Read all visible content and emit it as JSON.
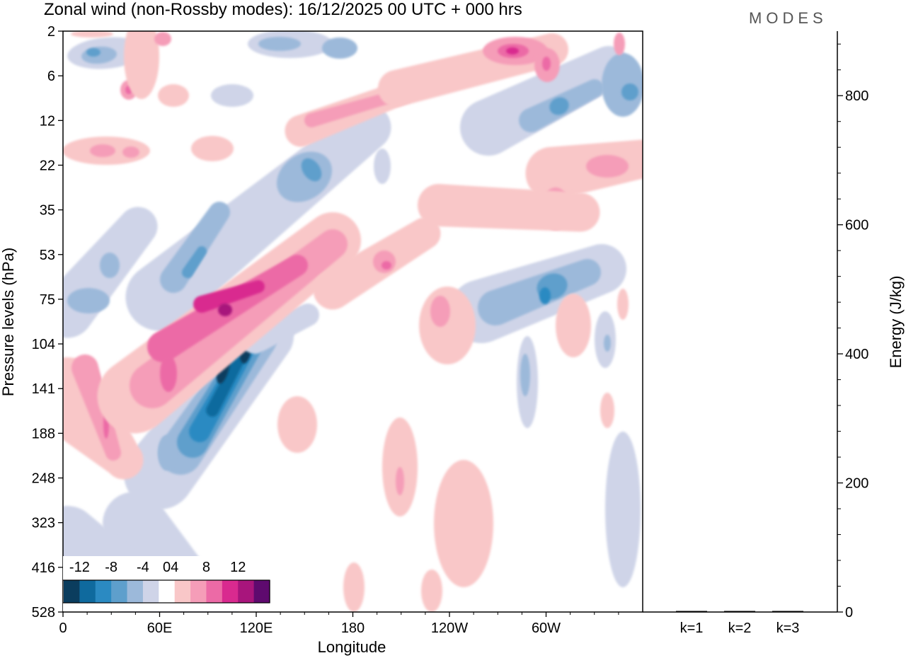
{
  "chart_data": {
    "type": "contour",
    "title": "Zonal wind (non-Rossby modes):  16/12/2025  00 UTC  + 000 hrs",
    "brand": "MODES",
    "xlabel": "Longitude",
    "ylabel": "Pressure levels (hPa)",
    "x_ticks": [
      "0",
      "60E",
      "120E",
      "180",
      "120W",
      "60W"
    ],
    "x_tick_values": [
      0,
      60,
      120,
      180,
      240,
      300
    ],
    "x_range": [
      0,
      360
    ],
    "y_ticks": [
      "2",
      "6",
      "12",
      "22",
      "35",
      "53",
      "75",
      "104",
      "141",
      "188",
      "248",
      "323",
      "416",
      "528"
    ],
    "colorbar": {
      "tick_labels": [
        "-12",
        "-8",
        "-4",
        "0",
        "4",
        "8",
        "12"
      ],
      "levels": [
        -14,
        -12,
        -10,
        -8,
        -6,
        -4,
        -2,
        2,
        4,
        6,
        8,
        10,
        12,
        14
      ],
      "colors": [
        "#0b3d5e",
        "#0f6a9e",
        "#2b8ac2",
        "#5e9fcc",
        "#9cb9da",
        "#cfd4e8",
        "#ffffff",
        "#f9c7c8",
        "#f59db8",
        "#ec6aa6",
        "#d92a8f",
        "#a8157c",
        "#5e0a6e"
      ]
    },
    "field_features": [
      {
        "lon": 100,
        "level": "141",
        "value": -14
      },
      {
        "lon": 105,
        "level": "104",
        "value": -12
      },
      {
        "lon": 90,
        "level": "75",
        "value": 10
      },
      {
        "lon": 60,
        "level": "141",
        "value": 8
      },
      {
        "lon": 25,
        "level": "141",
        "value": 6
      },
      {
        "lon": 20,
        "level": "2",
        "value": -8
      },
      {
        "lon": 80,
        "level": "53",
        "value": -6
      },
      {
        "lon": 150,
        "level": "22",
        "value": -6
      },
      {
        "lon": 200,
        "level": "53",
        "value": 7
      },
      {
        "lon": 275,
        "level": "2",
        "value": 10
      },
      {
        "lon": 300,
        "level": "6",
        "value": 9
      },
      {
        "lon": 300,
        "level": "75",
        "value": -7
      },
      {
        "lon": 240,
        "level": "104",
        "value": 5
      },
      {
        "lon": 335,
        "level": "22",
        "value": 6
      },
      {
        "lon": 345,
        "level": "6",
        "value": -6
      },
      {
        "lon": 280,
        "level": "12",
        "value": -6
      },
      {
        "lon": 210,
        "level": "248",
        "value": 4
      },
      {
        "lon": 240,
        "level": "323",
        "value": 4
      }
    ],
    "energy_panel": {
      "ylabel": "Energy (J/kg)",
      "y_ticks": [
        0,
        200,
        400,
        600,
        800
      ],
      "ylim": [
        0,
        900
      ],
      "categories": [
        "k=1",
        "k=2",
        "k=3"
      ],
      "values": [
        1,
        1,
        1
      ]
    }
  }
}
